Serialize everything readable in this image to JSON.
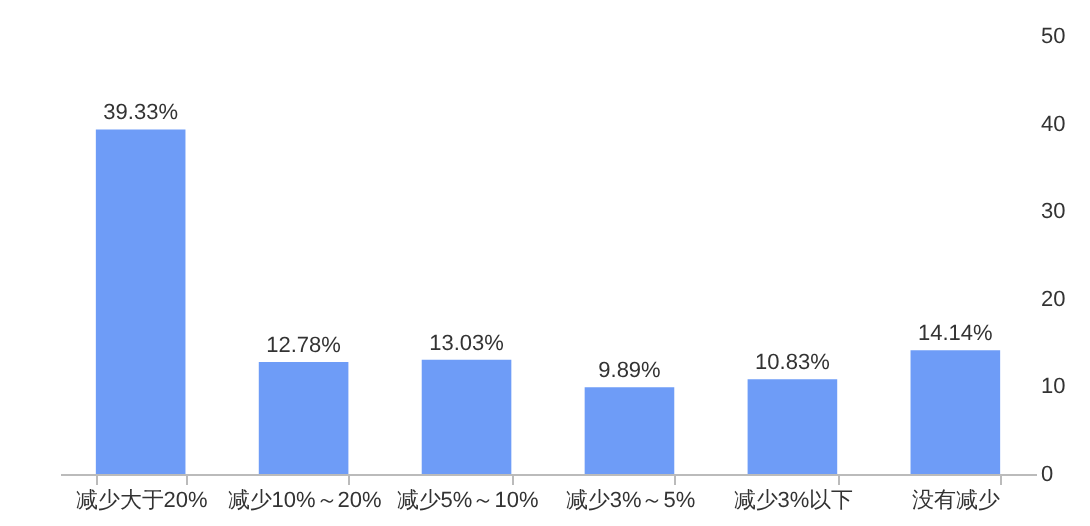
{
  "chart_data": {
    "type": "bar",
    "categories": [
      "减少大于20%",
      "减少10%～20%",
      "减少5%～10%",
      "减少3%～5%",
      "减少3%以下",
      "没有减少"
    ],
    "values": [
      39.33,
      12.78,
      13.03,
      9.89,
      10.83,
      14.14
    ],
    "value_labels": [
      "39.33%",
      "12.78%",
      "13.03%",
      "9.89%",
      "10.83%",
      "14.14%"
    ],
    "color": "#6e9cf7",
    "ylim": [
      0,
      50
    ],
    "yticks": [
      0,
      10,
      20,
      30,
      40,
      50
    ],
    "grid": false
  }
}
